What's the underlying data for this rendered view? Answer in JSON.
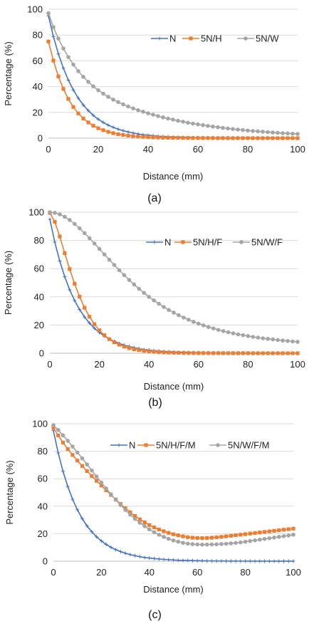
{
  "colors": {
    "N": "#4472c4",
    "H": "#ed7d31",
    "W": "#a5a5a5",
    "grid": "#d9d9d9",
    "axis": "#bfbfbf"
  },
  "chart_data": [
    {
      "type": "line",
      "caption": "(a)",
      "xlabel": "Distance (mm)",
      "ylabel": "Percentage (%)",
      "xlim": [
        0,
        100
      ],
      "ylim": [
        0,
        100
      ],
      "xticks": [
        "0",
        "20",
        "40",
        "60",
        "80",
        "100"
      ],
      "yticks": [
        "0",
        "20",
        "40",
        "60",
        "80",
        "100"
      ],
      "grid": "horizontal",
      "legend": "top-right",
      "x": [
        0,
        2,
        4,
        6,
        8,
        10,
        12,
        14,
        16,
        18,
        20,
        22,
        24,
        26,
        28,
        30,
        32,
        34,
        36,
        38,
        40,
        42,
        44,
        46,
        48,
        50,
        52,
        54,
        56,
        58,
        60,
        62,
        64,
        66,
        68,
        70,
        72,
        74,
        76,
        78,
        80,
        82,
        84,
        86,
        88,
        90,
        92,
        94,
        96,
        98,
        100
      ],
      "series": [
        {
          "name": "N",
          "marker": "plus",
          "values": [
            95,
            78.8,
            65.4,
            54.3,
            45.0,
            37.4,
            31.0,
            25.7,
            21.4,
            17.7,
            14.7,
            12.2,
            10.1,
            8.4,
            7.0,
            5.8,
            4.8,
            4.0,
            3.3,
            2.7,
            2.3,
            1.9,
            1.6,
            1.3,
            1.1,
            0.9,
            0.7,
            0.6,
            0.5,
            0.4,
            0.35,
            0.3,
            0.25,
            0.2,
            0.17,
            0.14,
            0.12,
            0.1,
            0.08,
            0.07,
            0.06,
            0.05,
            0.04,
            0.03,
            0.03,
            0.02,
            0.02,
            0.02,
            0.01,
            0.01,
            0.01
          ]
        },
        {
          "name": "5N/H",
          "marker": "square",
          "values": [
            75,
            60.2,
            47.9,
            38.2,
            30.4,
            24.2,
            19.2,
            15.3,
            12.2,
            9.7,
            7.7,
            6.2,
            4.9,
            3.9,
            3.1,
            2.5,
            2.0,
            1.6,
            1.25,
            1.0,
            0.8,
            0.6,
            0.5,
            0.4,
            0.3,
            0.25,
            0.2,
            0.16,
            0.13,
            0.1,
            0.08,
            0.06,
            0.05,
            0.04,
            0.03,
            0.03,
            0.02,
            0.02,
            0.01,
            0.01,
            0.01,
            0,
            0,
            0,
            0,
            0,
            0,
            0,
            0,
            0,
            0
          ]
        },
        {
          "name": "5N/W",
          "marker": "circle",
          "values": [
            97,
            86.1,
            77.3,
            69.6,
            62.9,
            57.1,
            52.0,
            47.6,
            43.7,
            40.2,
            37.2,
            34.5,
            32.1,
            29.9,
            28.0,
            26.2,
            24.6,
            23.1,
            21.7,
            20.5,
            19.3,
            18.2,
            17.1,
            16.1,
            15.2,
            14.4,
            13.5,
            12.8,
            12.0,
            11.3,
            10.7,
            10.1,
            9.5,
            9.0,
            8.5,
            8.0,
            7.5,
            7.1,
            6.7,
            6.3,
            5.9,
            5.6,
            5.3,
            5.0,
            4.7,
            4.4,
            4.2,
            3.9,
            3.7,
            3.5,
            3.3
          ]
        }
      ]
    },
    {
      "type": "line",
      "caption": "(b)",
      "xlabel": "Distance (mm)",
      "ylabel": "Percentage (%)",
      "xlim": [
        0,
        100
      ],
      "ylim": [
        0,
        100
      ],
      "xticks": [
        "0",
        "20",
        "40",
        "60",
        "80",
        "100"
      ],
      "yticks": [
        "0",
        "20",
        "40",
        "60",
        "80",
        "100"
      ],
      "grid": "horizontal",
      "legend": "top-right",
      "x": [
        0,
        2,
        4,
        6,
        8,
        10,
        12,
        14,
        16,
        18,
        20,
        22,
        24,
        26,
        28,
        30,
        32,
        34,
        36,
        38,
        40,
        42,
        44,
        46,
        48,
        50,
        52,
        54,
        56,
        58,
        60,
        62,
        64,
        66,
        68,
        70,
        72,
        74,
        76,
        78,
        80,
        82,
        84,
        86,
        88,
        90,
        92,
        94,
        96,
        98,
        100
      ],
      "series": [
        {
          "name": "N",
          "marker": "plus",
          "values": [
            95,
            78.8,
            65.4,
            54.3,
            45.0,
            37.4,
            31.0,
            25.7,
            21.4,
            17.7,
            14.7,
            12.2,
            10.1,
            8.4,
            7.0,
            5.8,
            4.8,
            4.0,
            3.3,
            2.7,
            2.3,
            1.9,
            1.6,
            1.3,
            1.1,
            0.9,
            0.7,
            0.6,
            0.5,
            0.4,
            0.35,
            0.3,
            0.25,
            0.2,
            0.17,
            0.14,
            0.12,
            0.1,
            0.08,
            0.07,
            0.06,
            0.05,
            0.04,
            0.03,
            0.03,
            0.02,
            0.02,
            0.02,
            0.01,
            0.01,
            0.01
          ]
        },
        {
          "name": "5N/H/F",
          "marker": "square",
          "values": [
            99.5,
            93.2,
            82.8,
            71.0,
            59.7,
            49.3,
            40.1,
            32.3,
            25.9,
            20.6,
            16.3,
            12.8,
            10.0,
            7.8,
            6.1,
            4.7,
            3.6,
            2.8,
            2.2,
            1.7,
            1.3,
            1.0,
            0.8,
            0.6,
            0.45,
            0.35,
            0.27,
            0.2,
            0.16,
            0.12,
            0.09,
            0.07,
            0.05,
            0.04,
            0.03,
            0.03,
            0.02,
            0.02,
            0.01,
            0.01,
            0.01,
            0,
            0,
            0,
            0,
            0,
            0,
            0,
            0,
            0,
            0
          ]
        },
        {
          "name": "5N/W/F",
          "marker": "circle",
          "values": [
            100,
            99.6,
            98.5,
            96.8,
            94.5,
            91.7,
            88.6,
            85.2,
            81.6,
            77.8,
            74.0,
            70.1,
            66.3,
            62.6,
            58.9,
            55.4,
            52.0,
            48.8,
            45.7,
            42.8,
            40.0,
            37.5,
            35.1,
            32.8,
            30.7,
            28.8,
            27.0,
            25.3,
            23.8,
            22.3,
            21.0,
            19.8,
            18.6,
            17.6,
            16.6,
            15.7,
            14.9,
            14.1,
            13.4,
            12.8,
            12.2,
            11.6,
            11.1,
            10.6,
            10.2,
            9.8,
            9.4,
            9.0,
            8.7,
            8.4,
            8.1
          ]
        }
      ]
    },
    {
      "type": "line",
      "caption": "(c)",
      "xlabel": "Distance (mm)",
      "ylabel": "Percentage (%)",
      "xlim": [
        0,
        100
      ],
      "ylim": [
        0,
        100
      ],
      "xticks": [
        "0",
        "20",
        "40",
        "60",
        "80",
        "100"
      ],
      "yticks": [
        "0",
        "20",
        "40",
        "60",
        "80",
        "100"
      ],
      "grid": "horizontal",
      "legend": "top-right",
      "x": [
        0,
        2,
        4,
        6,
        8,
        10,
        12,
        14,
        16,
        18,
        20,
        22,
        24,
        26,
        28,
        30,
        32,
        34,
        36,
        38,
        40,
        42,
        44,
        46,
        48,
        50,
        52,
        54,
        56,
        58,
        60,
        62,
        64,
        66,
        68,
        70,
        72,
        74,
        76,
        78,
        80,
        82,
        84,
        86,
        88,
        90,
        92,
        94,
        96,
        98,
        100
      ],
      "series": [
        {
          "name": "N",
          "marker": "plus",
          "values": [
            95,
            78.8,
            65.4,
            54.3,
            45.0,
            37.4,
            31.0,
            25.7,
            21.4,
            17.7,
            14.7,
            12.2,
            10.1,
            8.4,
            7.0,
            5.8,
            4.8,
            4.0,
            3.3,
            2.7,
            2.3,
            1.9,
            1.6,
            1.3,
            1.1,
            0.9,
            0.7,
            0.6,
            0.5,
            0.4,
            0.35,
            0.3,
            0.25,
            0.2,
            0.17,
            0.14,
            0.12,
            0.1,
            0.08,
            0.07,
            0.06,
            0.05,
            0.04,
            0.03,
            0.03,
            0.02,
            0.02,
            0.02,
            0.01,
            0.01,
            0.01
          ]
        },
        {
          "name": "5N/H/F/M",
          "marker": "square",
          "values": [
            97,
            91.5,
            86.3,
            81.6,
            77.3,
            73.2,
            69.3,
            65.6,
            62.0,
            58.5,
            55.0,
            51.6,
            48.2,
            44.9,
            41.6,
            38.5,
            35.6,
            32.9,
            30.5,
            28.3,
            26.3,
            24.6,
            23.1,
            21.8,
            20.6,
            19.6,
            18.8,
            18.1,
            17.5,
            17.1,
            16.9,
            16.8,
            16.9,
            17.1,
            17.4,
            17.7,
            18.1,
            18.5,
            18.9,
            19.3,
            19.7,
            20.1,
            20.5,
            20.9,
            21.3,
            21.7,
            22.1,
            22.5,
            22.9,
            23.3,
            23.7
          ]
        },
        {
          "name": "5N/W/F/M",
          "marker": "circle",
          "values": [
            99,
            95.5,
            91.6,
            87.6,
            83.4,
            79.1,
            74.8,
            70.4,
            66.0,
            61.6,
            57.2,
            52.9,
            48.7,
            44.7,
            40.9,
            37.3,
            33.9,
            30.8,
            28.0,
            25.5,
            23.2,
            21.1,
            19.3,
            17.7,
            16.3,
            15.1,
            14.2,
            13.4,
            12.8,
            12.4,
            12.2,
            12.1,
            12.1,
            12.2,
            12.3,
            12.5,
            12.7,
            13.0,
            13.3,
            13.7,
            14.2,
            14.7,
            15.2,
            15.7,
            16.2,
            16.7,
            17.2,
            17.7,
            18.2,
            18.7,
            19.3
          ]
        }
      ]
    }
  ]
}
